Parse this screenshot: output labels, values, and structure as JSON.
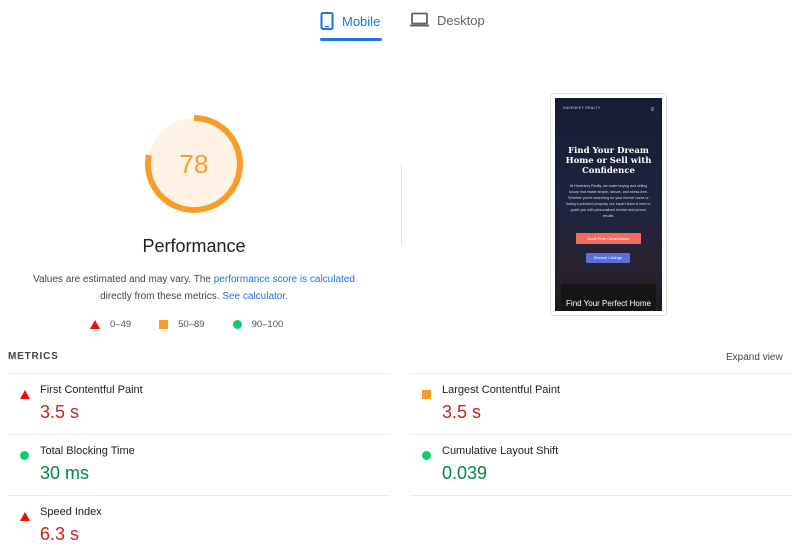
{
  "tabs": [
    {
      "label": "Mobile",
      "icon": "smartphone-icon",
      "active": true
    },
    {
      "label": "Desktop",
      "icon": "monitor-icon",
      "active": false
    }
  ],
  "score": {
    "value": 78,
    "fraction": 0.78,
    "label": "Performance",
    "color": "#fa9d28"
  },
  "note": {
    "text1": "Values are estimated and may vary. The ",
    "link1": "performance score is calculated",
    "text2": " directly from these metrics. ",
    "link2": "See calculator."
  },
  "legend": [
    {
      "range": "0–49",
      "color": "#eb0f00",
      "shape": "triangle"
    },
    {
      "range": "50–89",
      "color": "#fa9d28",
      "shape": "square"
    },
    {
      "range": "90–100",
      "color": "#0cce6b",
      "shape": "circle"
    }
  ],
  "preview": {
    "logo": "HAVENKEY REALTY",
    "heading": "Find Your Dream Home or Sell with Confidence",
    "body": "At Havenkey Realty, we make buying and selling luxury real estate simple, secure, and stress-free. Whether you're searching for your forever home or listing a premium property, our expert team is here to guide you with personalized service and proven results.",
    "button1": "Book Free Consultation",
    "button2": "Browse Listings",
    "section": "Find Your Perfect Home"
  },
  "metrics": {
    "header": "METRICS",
    "expand": "Expand view",
    "items": [
      {
        "label": "First Contentful Paint",
        "value": "3.5 s",
        "status": "poor"
      },
      {
        "label": "Largest Contentful Paint",
        "value": "3.5 s",
        "status": "average"
      },
      {
        "label": "Total Blocking Time",
        "value": "30 ms",
        "status": "good"
      },
      {
        "label": "Cumulative Layout Shift",
        "value": "0.039",
        "status": "good"
      },
      {
        "label": "Speed Index",
        "value": "6.3 s",
        "status": "poor"
      }
    ]
  }
}
